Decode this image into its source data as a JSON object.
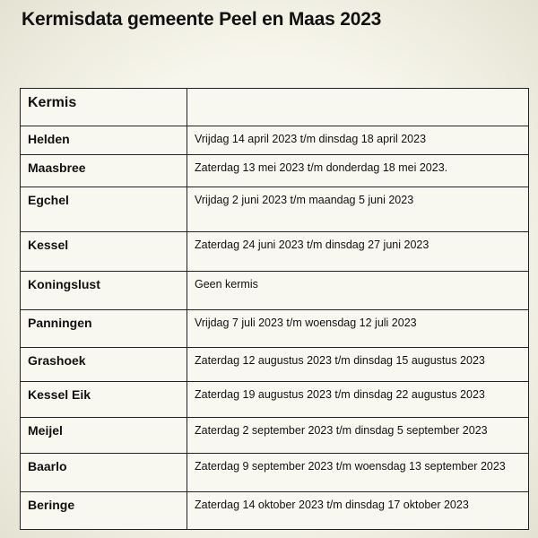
{
  "header": {
    "title": "Kermisdata gemeente Peel en Maas 2023"
  },
  "table": {
    "header": "Kermis",
    "rows": [
      [
        "Helden",
        "Vrijdag 14 april 2023 t/m dinsdag 18 april 2023"
      ],
      [
        "Maasbree",
        "Zaterdag 13 mei 2023 t/m donderdag 18 mei 2023."
      ],
      [
        "Egchel",
        "Vrijdag 2 juni 2023 t/m maandag 5 juni 2023"
      ],
      [
        "Kessel",
        "Zaterdag 24 juni 2023 t/m dinsdag 27 juni 2023"
      ],
      [
        "Koningslust",
        "Geen kermis"
      ],
      [
        "Panningen",
        "Vrijdag 7 juli 2023 t/m woensdag 12 juli 2023"
      ],
      [
        "Grashoek",
        "Zaterdag 12 augustus 2023 t/m dinsdag 15 augustus 2023"
      ],
      [
        "Kessel Eik",
        "Zaterdag 19 augustus 2023 t/m dinsdag 22 augustus 2023"
      ],
      [
        "Meijel",
        "Zaterdag 2 september 2023 t/m dinsdag 5 september 2023"
      ],
      [
        "Baarlo",
        "Zaterdag 9 september 2023 t/m woensdag 13 september 2023"
      ],
      [
        "Beringe",
        "Zaterdag 14 oktober 2023 t/m dinsdag 17 oktober 2023"
      ]
    ]
  }
}
